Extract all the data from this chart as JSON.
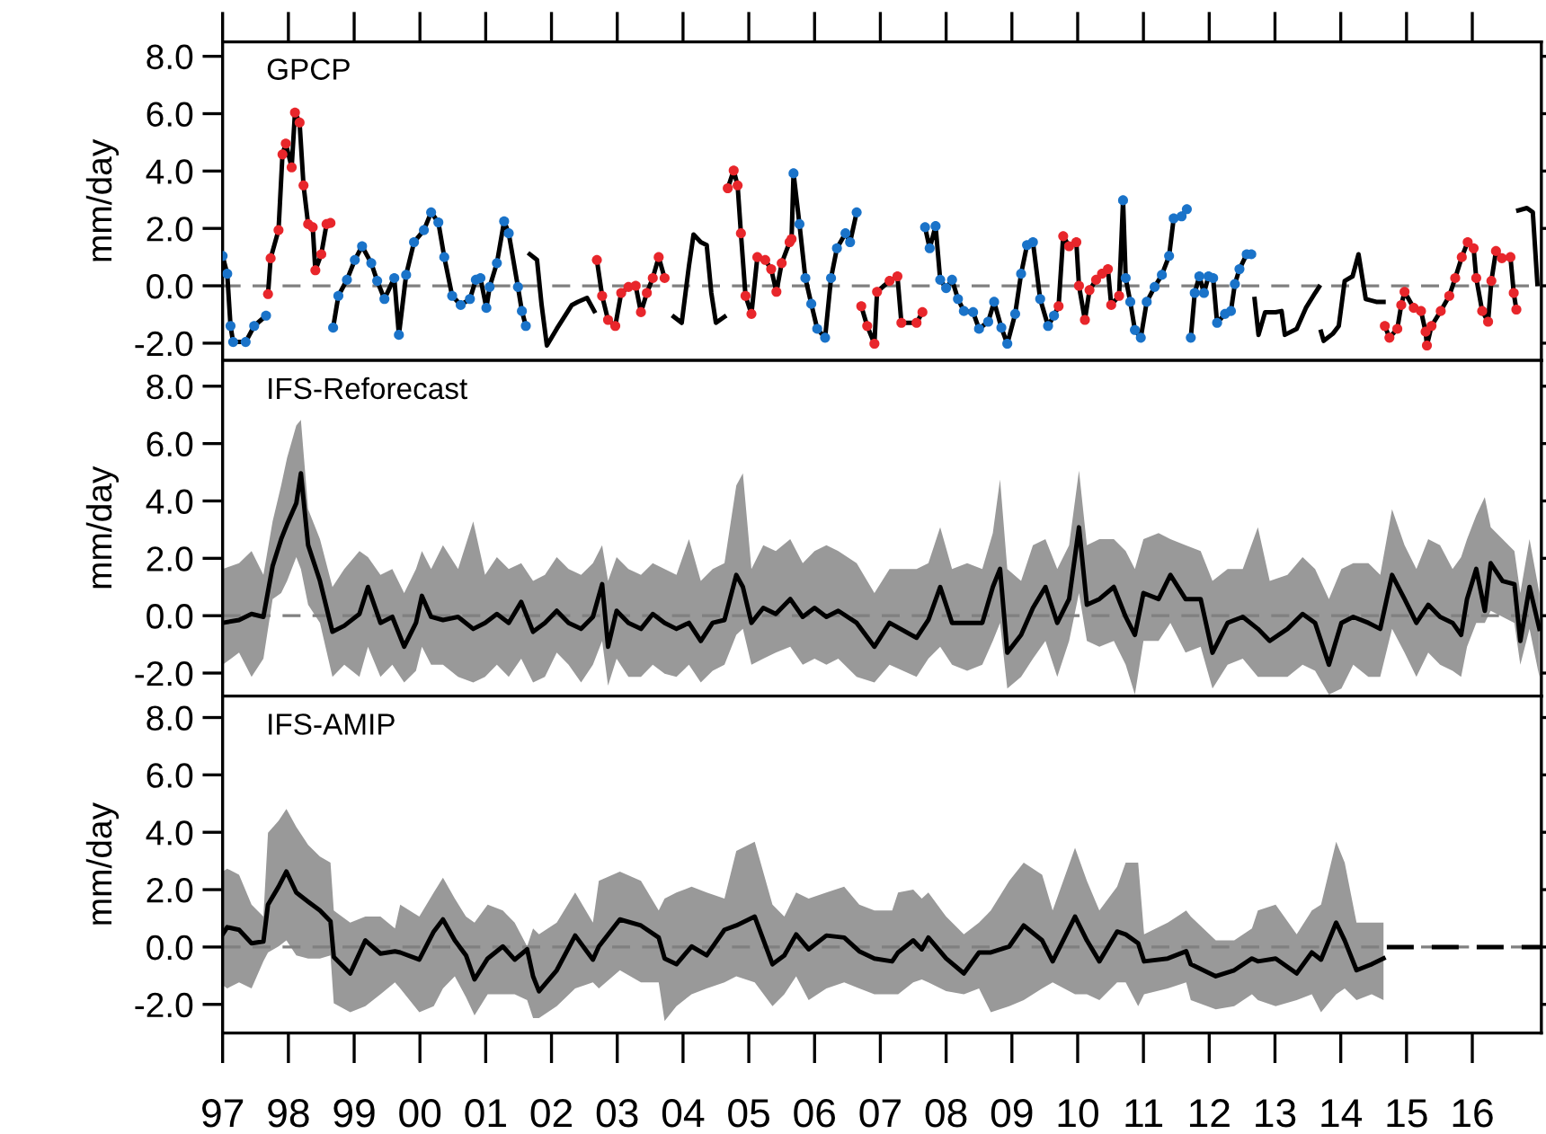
{
  "chart_data": [
    {
      "type": "line",
      "title": "GPCP",
      "ylabel": "mm/day",
      "xlim": [
        1997,
        2017.05
      ],
      "ylim": [
        -2.6,
        8.5
      ],
      "xticks": [
        {
          "value": 1997,
          "label": null
        },
        {
          "value": 1998,
          "label": null
        },
        {
          "value": 1999,
          "label": null
        },
        {
          "value": 2000,
          "label": null
        },
        {
          "value": 2001,
          "label": null
        },
        {
          "value": 2002,
          "label": null
        },
        {
          "value": 2003,
          "label": null
        },
        {
          "value": 2004,
          "label": null
        },
        {
          "value": 2005,
          "label": null
        },
        {
          "value": 2006,
          "label": null
        },
        {
          "value": 2007,
          "label": null
        },
        {
          "value": 2008,
          "label": null
        },
        {
          "value": 2009,
          "label": null
        },
        {
          "value": 2010,
          "label": null
        },
        {
          "value": 2011,
          "label": null
        },
        {
          "value": 2012,
          "label": null
        },
        {
          "value": 2013,
          "label": null
        },
        {
          "value": 2014,
          "label": null
        },
        {
          "value": 2015,
          "label": null
        },
        {
          "value": 2016,
          "label": null
        }
      ],
      "yticks": [
        {
          "value": -2,
          "label": "-2.0"
        },
        {
          "value": 0,
          "label": "0.0"
        },
        {
          "value": 2,
          "label": "2.0"
        },
        {
          "value": 4,
          "label": "4.0"
        },
        {
          "value": 6,
          "label": "6.0"
        },
        {
          "value": 8,
          "label": "8.0"
        }
      ],
      "tick_labels": "y",
      "ref_lines": [
        {
          "axis": "y",
          "value": 0,
          "color": "#808080",
          "line_style": "dashed"
        }
      ],
      "series": [
        {
          "type": "line",
          "color": "#000000",
          "x": [
            1997.0,
            1997.07,
            1997.12,
            1997.16,
            1997.35,
            1997.48,
            1997.66,
            1997.675,
            1997.69,
            1997.73,
            1997.85,
            1997.91,
            1997.96,
            1998.05,
            1998.1,
            1998.17,
            1998.23,
            1998.3,
            1998.37,
            1998.41,
            1998.5,
            1998.58,
            1998.64,
            1998.66,
            1998.68,
            1998.76,
            1998.89,
            1999.01,
            1999.12,
            1999.26,
            1999.35,
            1999.46,
            1999.61,
            1999.68,
            1999.79,
            1999.91,
            2000.06,
            2000.17,
            2000.28,
            2000.37,
            2000.49,
            2000.62,
            2000.76,
            2000.85,
            2000.92,
            2001.01,
            2001.06,
            2001.17,
            2001.28,
            2001.35,
            2001.49,
            2001.55,
            2001.61,
            2001.64,
            2001.67,
            2001.78,
            2001.85,
            2001.93,
            2002.08,
            2002.31,
            2002.4,
            2002.54,
            2002.65,
            2002.67,
            2002.69,
            2002.77,
            2002.86,
            2002.97,
            2003.06,
            2003.17,
            2003.28,
            2003.36,
            2003.45,
            2003.54,
            2003.63,
            2003.72,
            2003.79,
            2003.86,
            2003.98,
            2004.09,
            2004.16,
            2004.27,
            2004.36,
            2004.43,
            2004.5,
            2004.63,
            2004.65,
            2004.68,
            2004.77,
            2004.83,
            2004.88,
            2004.95,
            2005.04,
            2005.13,
            2005.25,
            2005.34,
            2005.42,
            2005.5,
            2005.62,
            2005.65,
            2005.68,
            2005.77,
            2005.86,
            2005.95,
            2006.04,
            2006.16,
            2006.25,
            2006.34,
            2006.47,
            2006.54,
            2006.64,
            2006.67,
            2006.71,
            2006.8,
            2006.91,
            2006.95,
            2007.14,
            2007.26,
            2007.32,
            2007.55,
            2007.64,
            2007.66,
            2007.68,
            2007.75,
            2007.84,
            2007.91,
            2008.0,
            2008.09,
            2008.18,
            2008.27,
            2008.41,
            2008.5,
            2008.64,
            2008.73,
            2008.84,
            2008.93,
            2009.05,
            2009.14,
            2009.23,
            2009.32,
            2009.43,
            2009.55,
            2009.64,
            2009.71,
            2009.78,
            2009.87,
            2009.98,
            2010.02,
            2010.11,
            2010.18,
            2010.28,
            2010.37,
            2010.46,
            2010.51,
            2010.63,
            2010.69,
            2010.73,
            2010.8,
            2010.87,
            2010.96,
            2011.05,
            2011.17,
            2011.28,
            2011.39,
            2011.46,
            2011.58,
            2011.66,
            2011.69,
            2011.72,
            2011.78,
            2011.85,
            2011.92,
            2011.99,
            2012.06,
            2012.12,
            2012.24,
            2012.33,
            2012.39,
            2012.46,
            2012.57,
            2012.64,
            2012.665,
            2012.69,
            2012.75,
            2012.85,
            2013.01,
            2013.1,
            2013.15,
            2013.33,
            2013.47,
            2013.61,
            2013.67,
            2013.685,
            2013.7,
            2013.74,
            2013.88,
            2013.97,
            2014.06,
            2014.18,
            2014.27,
            2014.38,
            2014.54,
            2014.65,
            2014.66,
            2014.67,
            2014.74,
            2014.86,
            2014.92,
            2014.97,
            2015.11,
            2015.22,
            2015.29,
            2015.31,
            2015.38,
            2015.52,
            2015.65,
            2015.74,
            2015.84,
            2015.93,
            2016.02,
            2016.06,
            2016.15,
            2016.24,
            2016.29,
            2016.36,
            2016.45,
            2016.58,
            2016.63,
            2016.67,
            2016.685,
            2016.7,
            2016.83,
            2016.92,
            2016.99
          ],
          "values": [
            1.04,
            0.42,
            -1.4,
            -1.96,
            -1.96,
            -1.4,
            -1.04,
            null,
            -0.29,
            0.96,
            1.94,
            4.58,
            4.96,
            4.13,
            6.04,
            5.69,
            3.5,
            2.15,
            2.04,
            0.54,
            1.1,
            2.15,
            2.19,
            null,
            -1.46,
            -0.35,
            0.21,
            0.9,
            1.38,
            0.79,
            0.17,
            -0.46,
            0.27,
            -1.71,
            0.38,
            1.52,
            1.94,
            2.56,
            2.21,
            1.0,
            -0.35,
            -0.67,
            -0.46,
            0.21,
            0.27,
            -0.77,
            -0.04,
            0.79,
            2.25,
            1.83,
            -0.04,
            -0.88,
            -1.4,
            null,
            1.1,
            0.9,
            -0.67,
            -2.08,
            -1.5,
            -0.67,
            -0.56,
            -0.42,
            -0.88,
            null,
            0.9,
            -0.35,
            -1.19,
            -1.4,
            -0.25,
            -0.04,
            0,
            -0.92,
            -0.25,
            0.27,
            1.0,
            0.27,
            null,
            -1.08,
            -1.29,
            0.69,
            1.79,
            1.52,
            1.42,
            -0.25,
            -1.29,
            -1.08,
            null,
            3.4,
            4.02,
            3.5,
            1.83,
            -0.35,
            -0.98,
            1.0,
            0.9,
            0.58,
            -0.21,
            0.79,
            1.52,
            1.63,
            3.92,
            2.15,
            0.27,
            -0.63,
            -1.5,
            -1.81,
            0.27,
            1.31,
            1.83,
            1.52,
            2.56,
            null,
            -0.71,
            -1.4,
            -2.02,
            -0.21,
            0.17,
            0.33,
            -1.29,
            -1.29,
            -0.92,
            null,
            2.04,
            1.31,
            2.08,
            0.21,
            -0.08,
            0.21,
            -0.46,
            -0.88,
            -0.92,
            -1.5,
            -1.25,
            -0.56,
            -1.46,
            -2.02,
            -0.98,
            0.42,
            1.42,
            1.52,
            -0.46,
            -1.4,
            -1.04,
            -0.71,
            1.73,
            1.38,
            1.52,
            0,
            -1.19,
            -0.15,
            0.21,
            0.42,
            0.58,
            -0.67,
            -0.35,
            2.98,
            0.27,
            -0.56,
            -1.54,
            -1.81,
            -0.56,
            -0.04,
            0.38,
            1.04,
            2.35,
            2.42,
            2.67,
            null,
            -1.81,
            -0.25,
            0.33,
            -0.25,
            0.33,
            0.27,
            -1.29,
            -0.98,
            -0.88,
            0.06,
            0.58,
            1.1,
            1.1,
            null,
            -0.46,
            -1.71,
            -0.92,
            -0.92,
            -0.88,
            -1.71,
            -1.5,
            -0.77,
            -0.25,
            -0.04,
            null,
            -1.6,
            -1.92,
            -1.67,
            -1.4,
            0.17,
            0.33,
            1.1,
            -0.46,
            -0.56,
            -0.56,
            null,
            -1.4,
            -1.81,
            -1.5,
            -0.67,
            -0.21,
            -0.77,
            -0.88,
            -1.6,
            -2.08,
            -1.4,
            -0.88,
            -0.35,
            0.27,
            1.0,
            1.52,
            1.31,
            0.27,
            -0.88,
            -1.25,
            0.17,
            1.21,
            0.96,
            1.0,
            -0.25,
            -0.83,
            null,
            2.63,
            2.71,
            2.56,
            0.06
          ]
        },
        {
          "type": "scatter",
          "color": "#e8262b",
          "marker": "circle",
          "x": [
            1997.69,
            1997.73,
            1997.85,
            1997.91,
            1997.96,
            1998.05,
            1998.1,
            1998.17,
            1998.23,
            1998.3,
            1998.37,
            1998.41,
            1998.5,
            1998.58,
            1998.64,
            2002.69,
            2002.77,
            2002.86,
            2002.97,
            2003.06,
            2003.17,
            2003.28,
            2003.36,
            2003.45,
            2003.54,
            2003.63,
            2003.72,
            2004.68,
            2004.77,
            2004.83,
            2004.88,
            2004.95,
            2005.04,
            2005.13,
            2005.25,
            2005.34,
            2005.42,
            2005.5,
            2005.62,
            2005.65,
            2006.71,
            2006.8,
            2006.91,
            2006.95,
            2007.14,
            2007.26,
            2007.32,
            2007.55,
            2007.64,
            2009.71,
            2009.78,
            2009.87,
            2009.98,
            2010.02,
            2010.11,
            2010.18,
            2010.28,
            2010.37,
            2010.46,
            2010.51,
            2010.63,
            2014.67,
            2014.74,
            2014.86,
            2014.92,
            2014.97,
            2015.11,
            2015.22,
            2015.29,
            2015.31,
            2015.38,
            2015.52,
            2015.65,
            2015.74,
            2015.84,
            2015.93,
            2016.02,
            2016.06,
            2016.15,
            2016.24,
            2016.29,
            2016.36,
            2016.45,
            2016.58,
            2016.63,
            2016.67
          ],
          "values": [
            -0.29,
            0.96,
            1.94,
            4.58,
            4.96,
            4.13,
            6.04,
            5.69,
            3.5,
            2.15,
            2.04,
            0.54,
            1.1,
            2.15,
            2.19,
            0.9,
            -0.35,
            -1.19,
            -1.4,
            -0.25,
            -0.04,
            0,
            -0.92,
            -0.25,
            0.27,
            1.0,
            0.27,
            3.4,
            4.02,
            3.5,
            1.83,
            -0.35,
            -0.98,
            1.0,
            0.9,
            0.58,
            -0.21,
            0.79,
            1.52,
            1.63,
            -0.71,
            -1.4,
            -2.02,
            -0.21,
            0.17,
            0.33,
            -1.29,
            -1.29,
            -0.92,
            -0.71,
            1.73,
            1.38,
            1.52,
            0,
            -1.19,
            -0.15,
            0.21,
            0.42,
            0.58,
            -0.67,
            -0.35,
            -1.4,
            -1.81,
            -1.5,
            -0.67,
            -0.21,
            -0.77,
            -0.88,
            -1.6,
            -2.08,
            -1.4,
            -0.88,
            -0.35,
            0.27,
            1.0,
            1.52,
            1.31,
            0.27,
            -0.88,
            -1.25,
            0.17,
            1.21,
            0.96,
            1.0,
            -0.25,
            -0.83
          ]
        },
        {
          "type": "scatter",
          "color": "#1a73c9",
          "marker": "circle",
          "x": [
            1997.0,
            1997.07,
            1997.12,
            1997.16,
            1997.35,
            1997.48,
            1997.66,
            1998.68,
            1998.76,
            1998.89,
            1999.01,
            1999.12,
            1999.26,
            1999.35,
            1999.46,
            1999.61,
            1999.68,
            1999.79,
            1999.91,
            2000.06,
            2000.17,
            2000.28,
            2000.37,
            2000.49,
            2000.62,
            2000.76,
            2000.85,
            2000.92,
            2001.01,
            2001.06,
            2001.17,
            2001.28,
            2001.35,
            2001.49,
            2001.55,
            2001.61,
            2005.68,
            2005.77,
            2005.86,
            2005.95,
            2006.04,
            2006.16,
            2006.25,
            2006.34,
            2006.47,
            2006.54,
            2006.64,
            2007.68,
            2007.75,
            2007.84,
            2007.91,
            2008.0,
            2008.09,
            2008.18,
            2008.27,
            2008.41,
            2008.5,
            2008.64,
            2008.73,
            2008.84,
            2008.93,
            2009.05,
            2009.14,
            2009.23,
            2009.32,
            2009.43,
            2009.55,
            2009.64,
            2010.69,
            2010.73,
            2010.8,
            2010.87,
            2010.96,
            2011.05,
            2011.17,
            2011.28,
            2011.39,
            2011.46,
            2011.58,
            2011.66,
            2011.72,
            2011.78,
            2011.85,
            2011.92,
            2011.99,
            2012.06,
            2012.12,
            2012.24,
            2012.33,
            2012.39,
            2012.46,
            2012.57,
            2012.64
          ],
          "values": [
            1.04,
            0.42,
            -1.4,
            -1.96,
            -1.96,
            -1.4,
            -1.04,
            -1.46,
            -0.35,
            0.21,
            0.9,
            1.38,
            0.79,
            0.17,
            -0.46,
            0.27,
            -1.71,
            0.38,
            1.52,
            1.94,
            2.56,
            2.21,
            1.0,
            -0.35,
            -0.67,
            -0.46,
            0.21,
            0.27,
            -0.77,
            -0.04,
            0.79,
            2.25,
            1.83,
            -0.04,
            -0.88,
            -1.4,
            3.92,
            2.15,
            0.27,
            -0.63,
            -1.5,
            -1.81,
            0.27,
            1.31,
            1.83,
            1.52,
            2.56,
            2.04,
            1.31,
            2.08,
            0.21,
            -0.08,
            0.21,
            -0.46,
            -0.88,
            -0.92,
            -1.5,
            -1.25,
            -0.56,
            -1.46,
            -2.02,
            -0.98,
            0.42,
            1.42,
            1.52,
            -0.46,
            -1.4,
            -1.04,
            2.98,
            0.27,
            -0.56,
            -1.54,
            -1.81,
            -0.56,
            -0.04,
            0.38,
            1.04,
            2.35,
            2.42,
            2.67,
            -1.81,
            -0.25,
            0.33,
            -0.25,
            0.33,
            0.27,
            -1.29,
            -0.98,
            -0.88,
            0.06,
            0.58,
            1.1,
            1.1
          ]
        }
      ]
    },
    {
      "type": "line",
      "title": "IFS-Reforecast",
      "ylabel": "mm/day",
      "xlim": [
        1997,
        2017.05
      ],
      "ylim": [
        -2.8,
        8.9
      ],
      "xticks": [
        {
          "value": 1997,
          "label": null
        },
        {
          "value": 1998,
          "label": null
        },
        {
          "value": 1999,
          "label": null
        },
        {
          "value": 2000,
          "label": null
        },
        {
          "value": 2001,
          "label": null
        },
        {
          "value": 2002,
          "label": null
        },
        {
          "value": 2003,
          "label": null
        },
        {
          "value": 2004,
          "label": null
        },
        {
          "value": 2005,
          "label": null
        },
        {
          "value": 2006,
          "label": null
        },
        {
          "value": 2007,
          "label": null
        },
        {
          "value": 2008,
          "label": null
        },
        {
          "value": 2009,
          "label": null
        },
        {
          "value": 2010,
          "label": null
        },
        {
          "value": 2011,
          "label": null
        },
        {
          "value": 2012,
          "label": null
        },
        {
          "value": 2013,
          "label": null
        },
        {
          "value": 2014,
          "label": null
        },
        {
          "value": 2015,
          "label": null
        },
        {
          "value": 2016,
          "label": null
        }
      ],
      "yticks": [
        {
          "value": -2,
          "label": "-2.0"
        },
        {
          "value": 0,
          "label": "0.0"
        },
        {
          "value": 2,
          "label": "2.0"
        },
        {
          "value": 4,
          "label": "4.0"
        },
        {
          "value": 6,
          "label": "6.0"
        },
        {
          "value": 8,
          "label": "8.0"
        }
      ],
      "tick_labels": "y",
      "ref_lines": [
        {
          "axis": "y",
          "value": 0,
          "color": "#808080",
          "line_style": "dashed"
        }
      ],
      "series": [
        {
          "type": "line",
          "color": "#000000",
          "x": [
            1997.0,
            1997.25,
            1997.44,
            1997.62,
            1997.76,
            1997.89,
            1997.98,
            1998.12,
            1998.19,
            1998.3,
            1998.48,
            1998.67,
            1998.85,
            1999.08,
            1999.21,
            1999.4,
            1999.58,
            1999.76,
            1999.94,
            2000.03,
            2000.17,
            2000.35,
            2000.58,
            2000.81,
            2000.99,
            2001.17,
            2001.35,
            2001.54,
            2001.72,
            2001.9,
            2002.08,
            2002.26,
            2002.45,
            2002.63,
            2002.77,
            2002.86,
            2002.99,
            2003.17,
            2003.36,
            2003.54,
            2003.72,
            2003.9,
            2004.09,
            2004.27,
            2004.45,
            2004.63,
            2004.81,
            2004.91,
            2005.04,
            2005.22,
            2005.41,
            2005.63,
            2005.82,
            2006.0,
            2006.18,
            2006.36,
            2006.64,
            2006.91,
            2007.14,
            2007.55,
            2007.73,
            2007.91,
            2008.09,
            2008.32,
            2008.55,
            2008.71,
            2008.82,
            2008.93,
            2009.14,
            2009.32,
            2009.51,
            2009.69,
            2009.87,
            2010.02,
            2010.14,
            2010.33,
            2010.55,
            2010.73,
            2010.87,
            2011.0,
            2011.23,
            2011.41,
            2011.64,
            2011.87,
            2012.05,
            2012.28,
            2012.51,
            2012.74,
            2012.92,
            2013.19,
            2013.42,
            2013.61,
            2013.82,
            2014.01,
            2014.19,
            2014.42,
            2014.6,
            2014.78,
            2014.97,
            2015.15,
            2015.33,
            2015.51,
            2015.7,
            2015.83,
            2015.92,
            2016.06,
            2016.19,
            2016.28,
            2016.46,
            2016.64,
            2016.73,
            2016.87,
            2017.02
          ],
          "values": [
            -0.25,
            -0.15,
            0.06,
            -0.04,
            1.73,
            2.67,
            3.19,
            3.92,
            4.96,
            2.46,
            1.21,
            -0.56,
            -0.35,
            0.06,
            1.0,
            -0.25,
            -0.04,
            -1.08,
            -0.25,
            0.69,
            -0.04,
            -0.15,
            -0.04,
            -0.46,
            -0.25,
            0.06,
            -0.25,
            0.48,
            -0.56,
            -0.25,
            0.17,
            -0.25,
            -0.46,
            -0.04,
            1.1,
            -1.08,
            0.17,
            -0.25,
            -0.46,
            0.06,
            -0.25,
            -0.46,
            -0.25,
            -0.88,
            -0.25,
            -0.15,
            1.42,
            1.0,
            -0.25,
            0.27,
            0.06,
            0.58,
            -0.04,
            0.27,
            -0.04,
            0.17,
            -0.25,
            -1.08,
            -0.25,
            -0.77,
            -0.15,
            1.0,
            -0.25,
            -0.25,
            -0.25,
            1.0,
            1.63,
            -1.29,
            -0.67,
            0.27,
            1.0,
            -0.25,
            0.58,
            3.08,
            0.38,
            0.58,
            1.0,
            -0.04,
            -0.67,
            0.79,
            0.58,
            1.42,
            0.58,
            0.58,
            -1.29,
            -0.25,
            -0.04,
            -0.46,
            -0.88,
            -0.46,
            0.06,
            -0.25,
            -1.71,
            -0.25,
            -0.04,
            -0.25,
            -0.46,
            1.42,
            0.58,
            -0.25,
            0.38,
            -0.04,
            -0.25,
            -0.67,
            0.58,
            1.63,
            0.17,
            1.83,
            1.21,
            1.1,
            -0.88,
            1.0,
            -0.46
          ],
          "lower": [
            -1.71,
            -1.29,
            -2.13,
            -1.5,
            0.58,
            0.79,
            1.21,
            2.04,
            1.63,
            0.38,
            -0.25,
            -2.13,
            -1.71,
            -2.13,
            -1.08,
            -2.13,
            -1.71,
            -2.33,
            -1.92,
            -1.08,
            -1.71,
            -1.71,
            -2.13,
            -2.33,
            -2.13,
            -1.71,
            -2.13,
            -1.5,
            -2.33,
            -2.13,
            -1.29,
            -1.71,
            -2.33,
            -1.71,
            -0.88,
            -2.44,
            -1.5,
            -2.13,
            -2.13,
            -1.71,
            -2.02,
            -2.13,
            -1.71,
            -2.33,
            -1.92,
            -1.71,
            -0.67,
            -0.46,
            -1.71,
            -1.5,
            -1.29,
            -1.08,
            -1.71,
            -1.5,
            -1.71,
            -1.5,
            -2.13,
            -2.33,
            -1.71,
            -2.13,
            -1.5,
            -1.08,
            -1.71,
            -1.92,
            -1.71,
            -0.88,
            -0.25,
            -2.54,
            -2.13,
            -1.5,
            -0.88,
            -2.13,
            -0.88,
            0.79,
            -0.88,
            -1.08,
            -0.88,
            -1.71,
            -2.75,
            -0.88,
            -0.88,
            -0.25,
            -1.29,
            -1.08,
            -2.54,
            -1.71,
            -1.5,
            -2.13,
            -2.13,
            -2.13,
            -1.71,
            -1.92,
            -2.75,
            -2.54,
            -1.71,
            -2.13,
            -2.13,
            -0.46,
            -1.29,
            -2.13,
            -1.29,
            -1.71,
            -1.92,
            -2.13,
            -1.08,
            -0.25,
            -0.25,
            0.17,
            -0.04,
            -0.25,
            -1.71,
            -0.46,
            -2.13
          ],
          "upper": [
            1.63,
            1.83,
            2.25,
            1.42,
            3.29,
            4.54,
            5.5,
            6.63,
            6.83,
            3.71,
            2.67,
            1.0,
            1.63,
            2.25,
            2.04,
            1.42,
            1.63,
            0.79,
            1.63,
            2.25,
            1.63,
            2.46,
            1.63,
            3.29,
            1.42,
            2.04,
            1.63,
            1.83,
            1.21,
            1.42,
            2.04,
            1.63,
            1.42,
            1.83,
            2.46,
            1.21,
            2.04,
            1.63,
            1.42,
            1.83,
            1.63,
            1.42,
            2.67,
            1.21,
            1.63,
            1.83,
            4.54,
            4.96,
            1.63,
            2.46,
            2.25,
            2.67,
            1.83,
            2.25,
            2.46,
            2.25,
            1.83,
            0.79,
            1.63,
            1.63,
            1.83,
            3.08,
            1.63,
            1.83,
            1.63,
            2.88,
            4.75,
            1.63,
            1.21,
            2.46,
            2.67,
            1.63,
            2.46,
            5.06,
            2.46,
            2.67,
            2.67,
            2.25,
            1.63,
            2.67,
            2.88,
            2.67,
            2.46,
            2.25,
            1.21,
            1.63,
            1.63,
            3.08,
            1.21,
            1.42,
            2.04,
            1.63,
            0.58,
            1.63,
            1.83,
            1.83,
            1.42,
            3.71,
            2.46,
            1.63,
            2.67,
            2.46,
            1.63,
            2.04,
            2.67,
            3.5,
            4.13,
            3.08,
            2.67,
            2.25,
            0.79,
            2.67,
            0.79
          ]
        }
      ]
    },
    {
      "type": "line",
      "title": "IFS-AMIP",
      "ylabel": "mm/day",
      "xlim": [
        1997,
        2017.05
      ],
      "ylim": [
        -3.0,
        8.75
      ],
      "xticks": [
        {
          "value": 1997,
          "label": "97"
        },
        {
          "value": 1998,
          "label": "98"
        },
        {
          "value": 1999,
          "label": "99"
        },
        {
          "value": 2000,
          "label": "00"
        },
        {
          "value": 2001,
          "label": "01"
        },
        {
          "value": 2002,
          "label": "02"
        },
        {
          "value": 2003,
          "label": "03"
        },
        {
          "value": 2004,
          "label": "04"
        },
        {
          "value": 2005,
          "label": "05"
        },
        {
          "value": 2006,
          "label": "06"
        },
        {
          "value": 2007,
          "label": "07"
        },
        {
          "value": 2008,
          "label": "08"
        },
        {
          "value": 2009,
          "label": "09"
        },
        {
          "value": 2010,
          "label": "10"
        },
        {
          "value": 2011,
          "label": "11"
        },
        {
          "value": 2012,
          "label": "12"
        },
        {
          "value": 2013,
          "label": "13"
        },
        {
          "value": 2014,
          "label": "14"
        },
        {
          "value": 2015,
          "label": "15"
        },
        {
          "value": 2016,
          "label": "16"
        }
      ],
      "yticks": [
        {
          "value": -2,
          "label": "-2.0"
        },
        {
          "value": 0,
          "label": "0.0"
        },
        {
          "value": 2,
          "label": "2.0"
        },
        {
          "value": 4,
          "label": "4.0"
        },
        {
          "value": 6,
          "label": "6.0"
        },
        {
          "value": 8,
          "label": "8.0"
        }
      ],
      "ref_lines": [
        {
          "axis": "y",
          "value": 0,
          "color": "#808080",
          "line_style": "dashed"
        }
      ],
      "series": [
        {
          "type": "line",
          "color": "#000000",
          "x": [
            1997.0,
            1997.07,
            1997.25,
            1997.44,
            1997.62,
            1997.69,
            1997.85,
            1997.97,
            1998.12,
            1998.3,
            1998.48,
            1998.64,
            1998.69,
            1998.94,
            1999.17,
            1999.4,
            1999.62,
            1999.7,
            1999.99,
            2000.21,
            2000.35,
            2000.53,
            2000.7,
            2000.83,
            2001.03,
            2001.26,
            2001.44,
            2001.63,
            2001.72,
            2001.81,
            2002.08,
            2002.36,
            2002.63,
            2002.72,
            2003.04,
            2003.36,
            2003.63,
            2003.72,
            2003.9,
            2004.13,
            2004.36,
            2004.63,
            2004.81,
            2005.09,
            2005.36,
            2005.54,
            2005.72,
            2005.91,
            2006.18,
            2006.45,
            2006.68,
            2006.91,
            2007.18,
            2007.27,
            2007.5,
            2007.63,
            2007.73,
            2008.0,
            2008.27,
            2008.5,
            2008.68,
            2008.96,
            2009.18,
            2009.46,
            2009.62,
            2009.96,
            2010.14,
            2010.33,
            2010.6,
            2010.73,
            2010.92,
            2011.01,
            2011.37,
            2011.65,
            2011.72,
            2012.1,
            2012.38,
            2012.65,
            2012.74,
            2013.01,
            2013.33,
            2013.56,
            2013.7,
            2013.93,
            2014.06,
            2014.24,
            2014.47,
            2014.65
          ],
          "values": [
            0.44,
            0.69,
            0.6,
            0.13,
            0.19,
            1.48,
            2.1,
            2.63,
            1.9,
            1.58,
            1.27,
            0.9,
            -0.35,
            -0.92,
            0.23,
            -0.23,
            -0.15,
            -0.19,
            -0.44,
            0.54,
            0.96,
            0.23,
            -0.29,
            -1.13,
            -0.4,
            0.02,
            -0.44,
            -0.08,
            -1.02,
            -1.54,
            -0.81,
            0.4,
            -0.44,
            0.02,
            0.96,
            0.75,
            0.33,
            -0.4,
            -0.6,
            0.02,
            -0.29,
            0.6,
            0.75,
            1.06,
            -0.6,
            -0.29,
            0.44,
            -0.08,
            0.4,
            0.33,
            -0.15,
            -0.4,
            -0.5,
            -0.19,
            0.23,
            -0.08,
            0.33,
            -0.4,
            -0.92,
            -0.19,
            -0.19,
            0.02,
            0.75,
            0.23,
            -0.5,
            1.06,
            0.23,
            -0.5,
            0.54,
            0.44,
            0.13,
            -0.5,
            -0.4,
            -0.15,
            -0.6,
            -1.02,
            -0.81,
            -0.4,
            -0.5,
            -0.4,
            -0.92,
            -0.19,
            -0.44,
            0.85,
            0.23,
            -0.81,
            -0.6,
            -0.4
          ],
          "lower": [
            -1.33,
            -1.44,
            -1.23,
            -1.44,
            -0.5,
            -0.19,
            0.02,
            0.23,
            -0.29,
            -0.4,
            -0.4,
            -0.29,
            -1.96,
            -2.27,
            -2.06,
            -1.65,
            -1.23,
            -1.44,
            -2.27,
            -2.06,
            -1.44,
            -1.02,
            -1.75,
            -2.38,
            -1.65,
            -1.65,
            -1.65,
            -1.85,
            -2.48,
            -2.48,
            -2.06,
            -1.44,
            -1.23,
            -1.44,
            -0.81,
            -1.23,
            -1.23,
            -2.58,
            -2.06,
            -1.65,
            -1.44,
            -1.23,
            -1.02,
            -1.23,
            -2.06,
            -1.65,
            -1.02,
            -1.85,
            -1.44,
            -1.23,
            -1.44,
            -1.65,
            -1.65,
            -1.65,
            -1.23,
            -1.13,
            -1.23,
            -1.54,
            -1.65,
            -1.44,
            -2.27,
            -2.06,
            -1.85,
            -1.44,
            -1.23,
            -1.65,
            -1.65,
            -1.85,
            -1.23,
            -1.23,
            -2.06,
            -1.65,
            -1.44,
            -1.23,
            -1.85,
            -2.17,
            -2.06,
            -1.65,
            -1.85,
            -2.06,
            -1.85,
            -1.65,
            -2.27,
            -1.65,
            -1.44,
            -1.85,
            -1.65,
            -1.85
          ],
          "upper": [
            2.63,
            2.73,
            2.52,
            1.48,
            1.06,
            3.98,
            4.4,
            4.81,
            4.19,
            3.56,
            3.15,
            2.94,
            1.27,
            0.85,
            1.06,
            1.06,
            0.65,
            1.48,
            1.06,
            1.9,
            2.42,
            1.69,
            1.06,
            0.85,
            1.48,
            1.27,
            0.85,
            0.02,
            0.65,
            0.44,
            0.85,
            1.9,
            0.85,
            2.31,
            2.63,
            2.31,
            1.27,
            1.69,
            1.9,
            2.1,
            1.9,
            1.69,
            3.35,
            3.67,
            1.48,
            1.06,
            1.9,
            1.69,
            1.9,
            2.1,
            1.48,
            1.27,
            1.27,
            1.9,
            2.0,
            1.69,
            1.9,
            1.06,
            0.44,
            0.85,
            1.27,
            2.31,
            2.94,
            2.52,
            1.27,
            3.46,
            2.31,
            1.27,
            2.1,
            2.94,
            2.94,
            0.44,
            0.85,
            1.27,
            1.06,
            0.23,
            0.23,
            0.65,
            1.27,
            1.48,
            0.44,
            1.27,
            1.48,
            3.67,
            2.94,
            0.85,
            0.85,
            0.85
          ]
        },
        {
          "type": "line",
          "color": "#000000",
          "line_style": "dashed",
          "x": [
            2014.7,
            2017.05
          ],
          "values": [
            0,
            0
          ]
        }
      ]
    }
  ]
}
